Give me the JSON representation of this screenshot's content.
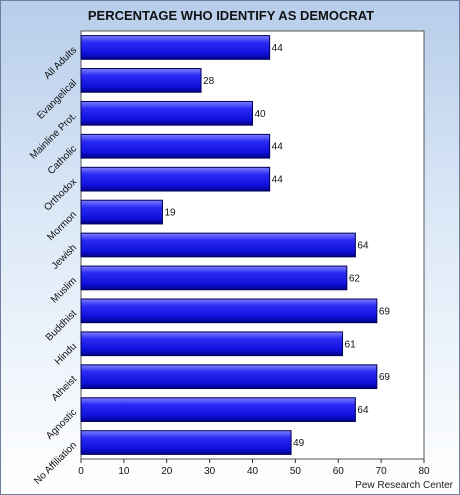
{
  "chart_data": {
    "type": "bar",
    "orientation": "horizontal",
    "title": "PERCENTAGE WHO IDENTIFY AS DEMOCRAT",
    "categories": [
      "All Adults",
      "Evangelical",
      "Mainline Prot.",
      "Catholic",
      "Orthodox",
      "Mormon",
      "Jewish",
      "Muslim",
      "Buddhist",
      "Hindu",
      "Atheist",
      "Agnostic",
      "No Affiliation"
    ],
    "values": [
      44,
      28,
      40,
      44,
      44,
      19,
      64,
      62,
      69,
      61,
      69,
      64,
      49
    ],
    "xticks": [
      0,
      10,
      20,
      30,
      40,
      50,
      60,
      70,
      80
    ],
    "xlim": [
      0,
      80
    ],
    "grid": false,
    "bar_color": "#1a1aee",
    "source": "Pew Research Center"
  }
}
